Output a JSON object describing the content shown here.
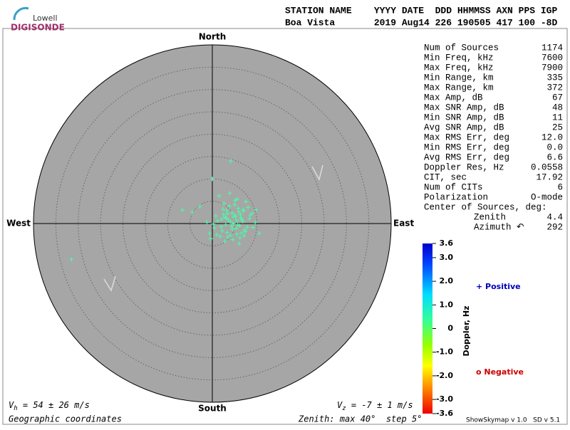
{
  "logo": {
    "line1": "Lowell",
    "line2": "DIGISONDE"
  },
  "header": {
    "columns": "STATION NAME    YYYY DATE  DDD HHMMSS AXN PPS IGP",
    "values": "Boa Vista       2019 Aug14 226 190505 417 100 -8D"
  },
  "chart_data": {
    "type": "scatter",
    "north": "North",
    "south": "South",
    "east": "East",
    "west": "West",
    "x": [
      2.1,
      3.4,
      4.0,
      5.2,
      6.1,
      7.0,
      8.3,
      4.5,
      5.8,
      3.0,
      2.5,
      6.6,
      7.4,
      4.9,
      5.5,
      3.8,
      1.2,
      0.5,
      8.9,
      9.6,
      6.2,
      4.1,
      2.9,
      5.0,
      7.8,
      3.3,
      4.7,
      6.9,
      5.9,
      1.8,
      0.8,
      2.6,
      7.1,
      8.0,
      3.6,
      4.3,
      5.3,
      6.4,
      2.2,
      9.1,
      10.5,
      -1.2,
      -0.6,
      -2.8,
      -6.7,
      -4.5,
      0.0,
      4.1,
      1.5,
      3.9,
      5.6,
      7.5,
      6.0,
      2.8,
      4.6,
      5.1,
      3.2,
      8.5,
      0.2,
      -0.4,
      6.8,
      4.4,
      3.5,
      5.7,
      2.4,
      7.2,
      1.0,
      6.3,
      4.8,
      9.8,
      -31.5,
      5.4,
      3.1,
      2.0,
      6.5
    ],
    "y": [
      1.0,
      2.2,
      0.4,
      1.6,
      -0.5,
      2.8,
      1.1,
      -1.3,
      3.4,
      -0.2,
      2.0,
      0.9,
      -1.8,
      1.9,
      -2.4,
      3.9,
      0.6,
      -1.0,
      2.3,
      0.2,
      -3.2,
      -2.6,
      1.4,
      4.2,
      -0.8,
      -2.0,
      0.0,
      3.1,
      2.6,
      -2.9,
      1.7,
      4.5,
      -2.7,
      3.6,
      0.8,
      -0.6,
      -1.1,
      1.3,
      -1.6,
      -0.9,
      -2.2,
      0.3,
      -2.2,
      3.8,
      3.0,
      2.6,
      10.0,
      14.0,
      6.2,
      6.8,
      5.5,
      4.9,
      -4.5,
      -4.0,
      -3.6,
      5.2,
      2.9,
      1.9,
      -0.1,
      -3.4,
      0.5,
      2.4,
      -3.0,
      -0.3,
      3.2,
      -1.4,
      -2.5,
      2.0,
      1.5,
      3.1,
      -8.0,
      0.7,
      1.2,
      -0.7,
      -2.1
    ],
    "color": "#52f5a8",
    "xlim": [
      -40,
      40
    ],
    "ylim": [
      -40,
      40
    ],
    "rings": [
      5,
      10,
      15,
      20,
      25,
      30,
      35
    ]
  },
  "stats": {
    "rows": [
      {
        "label": "Num of Sources",
        "value": "1174"
      },
      {
        "label": "Min Freq, kHz",
        "value": "7600"
      },
      {
        "label": "Max Freq, kHz",
        "value": "7900"
      },
      {
        "label": "Min Range, km",
        "value": "335"
      },
      {
        "label": "Max Range, km",
        "value": "372"
      },
      {
        "label": "Max Amp, dB",
        "value": "67"
      },
      {
        "label": "Max SNR Amp, dB",
        "value": "48"
      },
      {
        "label": "Min SNR Amp, dB",
        "value": "11"
      },
      {
        "label": "Avg SNR Amp, dB",
        "value": "25"
      },
      {
        "label": "Max RMS Err, deg",
        "value": "12.0"
      },
      {
        "label": "Min RMS Err, deg",
        "value": "0.0"
      },
      {
        "label": "Avg RMS Err, deg",
        "value": "6.6"
      },
      {
        "label": "Doppler Res, Hz",
        "value": "0.0558"
      },
      {
        "label": "CIT, sec",
        "value": "17.92"
      },
      {
        "label": "Num of CITs",
        "value": "6"
      },
      {
        "label": "Polarization",
        "value": "O-mode"
      }
    ],
    "center_title": "Center of Sources, deg:",
    "center_rows": [
      {
        "label": "Zenith",
        "value": "4.4"
      },
      {
        "label": "Azimuth ↶",
        "value": "292"
      }
    ]
  },
  "colorbar": {
    "label": "Doppler, Hz",
    "lim": [
      -3.6,
      3.6
    ],
    "ticks": [
      {
        "value": 3.6,
        "label": "3.6"
      },
      {
        "value": 3,
        "label": "3.0"
      },
      {
        "value": 2,
        "label": "2.0"
      },
      {
        "value": 1,
        "label": "1.0"
      },
      0,
      {
        "value": -1,
        "label": "-1.0"
      },
      {
        "value": -2,
        "label": "-2.0"
      },
      {
        "value": -3,
        "label": "-3.0"
      },
      {
        "value": -3.6,
        "label": "-3.6"
      }
    ]
  },
  "legend": {
    "positive": "+ Positive",
    "negative": "o Negative"
  },
  "footer": {
    "vh_v": "V",
    "vh_sub": "h",
    "vh_rest": " = 54 ± 26 m/s",
    "vz_v": "V",
    "vz_sub": "z",
    "vz_rest": " = -7 ± 1 m/s",
    "coords": "Geographic coordinates",
    "zenith": "Zenith: max 40°  step 5°",
    "version": "ShowSkymap v 1.0   SD v 5.1"
  }
}
